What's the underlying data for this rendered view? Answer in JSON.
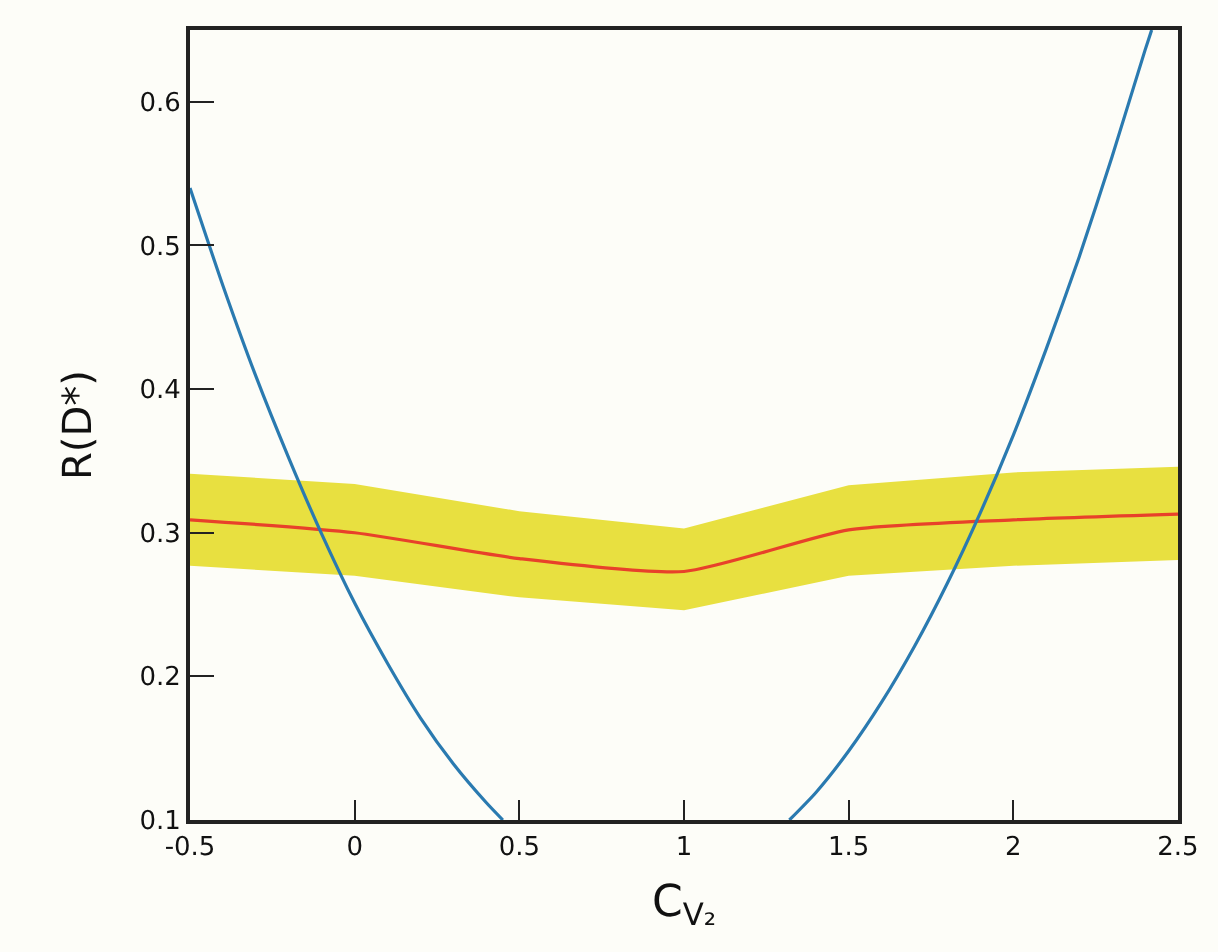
{
  "chart_data": {
    "type": "line",
    "xlabel": "C$_{V₂}$",
    "ylabel": "R(D*)",
    "x": [
      -0.5,
      0,
      0.5,
      1,
      1.5,
      2,
      2.5
    ],
    "series": [
      {
        "color": "#e8412a",
        "values": [
          0.309,
          0.3,
          0.282,
          0.273,
          0.302,
          0.309,
          0.313
        ],
        "lower": [
          0.277,
          0.27,
          0.255,
          0.246,
          0.27,
          0.277,
          0.281
        ],
        "upper": [
          0.341,
          0.334,
          0.315,
          0.303,
          0.333,
          0.342,
          0.346
        ]
      },
      {
        "color": "#2a7ab0",
        "x": [
          -0.5,
          -0.4,
          -0.3,
          -0.2,
          -0.1,
          0,
          0.1,
          0.2,
          0.3,
          0.4,
          0.45,
          0.885,
          1.32,
          1.4,
          1.5,
          1.6,
          1.7,
          1.8,
          1.9,
          2.0,
          2.1,
          2.2,
          2.3,
          2.4,
          2.42
        ],
        "values": [
          0.54,
          0.472,
          0.409,
          0.352,
          0.299,
          0.251,
          0.209,
          0.171,
          0.139,
          0.112,
          0.1,
          null,
          0.1,
          0.119,
          0.148,
          0.182,
          0.221,
          0.265,
          0.314,
          0.368,
          0.428,
          0.492,
          0.562,
          0.636,
          0.65
        ]
      }
    ],
    "xlim": [
      -0.5,
      2.5
    ],
    "xticks": [
      -0.5,
      0,
      0.5,
      1,
      1.5,
      2,
      2.5
    ],
    "ylim": [
      0.1,
      0.65
    ],
    "yticks": [
      0.1,
      0.2,
      0.3,
      0.4,
      0.5,
      0.6
    ],
    "grid": false,
    "line_style": "solid",
    "marker": "none"
  }
}
